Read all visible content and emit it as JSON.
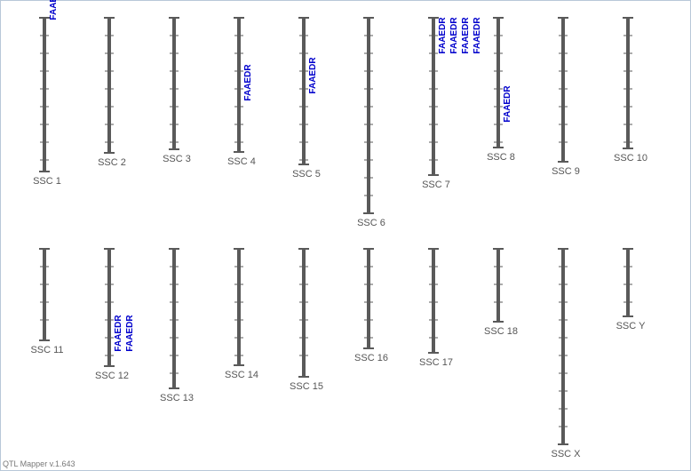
{
  "chromosomes": [
    {
      "label": "SSC 1",
      "qtls": [
        "FAAEDR"
      ]
    },
    {
      "label": "SSC 2",
      "qtls": []
    },
    {
      "label": "SSC 3",
      "qtls": []
    },
    {
      "label": "SSC 4",
      "qtls": [
        "FAAEDR"
      ]
    },
    {
      "label": "SSC 5",
      "qtls": [
        "FAAEDR"
      ]
    },
    {
      "label": "SSC 6",
      "qtls": []
    },
    {
      "label": "SSC 7",
      "qtls": [
        "FAAEDR",
        "FAAEDR",
        "FAAEDR",
        "FAAEDR"
      ]
    },
    {
      "label": "SSC 8",
      "qtls": [
        "FAAEDR"
      ]
    },
    {
      "label": "SSC 9",
      "qtls": []
    },
    {
      "label": "SSC 10",
      "qtls": []
    },
    {
      "label": "SSC 11",
      "qtls": []
    },
    {
      "label": "SSC 12",
      "qtls": [
        "FAAEDR",
        "FAAEDR"
      ]
    },
    {
      "label": "SSC 13",
      "qtls": []
    },
    {
      "label": "SSC 14",
      "qtls": []
    },
    {
      "label": "SSC 15",
      "qtls": []
    },
    {
      "label": "SSC 16",
      "qtls": []
    },
    {
      "label": "SSC 17",
      "qtls": []
    },
    {
      "label": "SSC 18",
      "qtls": []
    },
    {
      "label": "SSC X",
      "qtls": []
    },
    {
      "label": "SSC Y",
      "qtls": []
    }
  ],
  "footer": "QTL Mapper v.1.643"
}
